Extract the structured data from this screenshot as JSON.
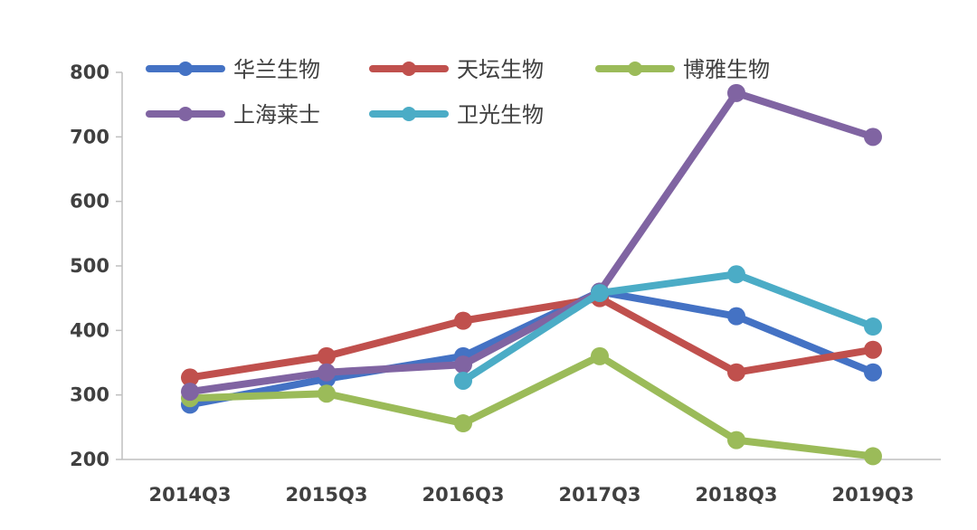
{
  "chart_data": {
    "type": "line",
    "title": "",
    "xlabel": "",
    "ylabel": "",
    "ylim": [
      200,
      800
    ],
    "yticks": [
      200,
      300,
      400,
      500,
      600,
      700,
      800
    ],
    "categories": [
      "2014Q3",
      "2015Q3",
      "2016Q3",
      "2017Q3",
      "2018Q3",
      "2019Q3"
    ],
    "legend_position": "top-left",
    "grid": false,
    "series": [
      {
        "name": "华兰生物",
        "color": "#4472C4",
        "values": [
          285,
          325,
          360,
          460,
          422,
          335
        ]
      },
      {
        "name": "天坛生物",
        "color": "#C0504D",
        "values": [
          327,
          360,
          415,
          450,
          335,
          370
        ]
      },
      {
        "name": "博雅生物",
        "color": "#9BBB59",
        "values": [
          295,
          302,
          256,
          360,
          230,
          205
        ]
      },
      {
        "name": "上海莱士",
        "color": "#8064A2",
        "values": [
          305,
          335,
          347,
          460,
          768,
          700
        ]
      },
      {
        "name": "卫光生物",
        "color": "#4BACC6",
        "values": [
          null,
          null,
          322,
          458,
          487,
          406
        ]
      }
    ]
  }
}
